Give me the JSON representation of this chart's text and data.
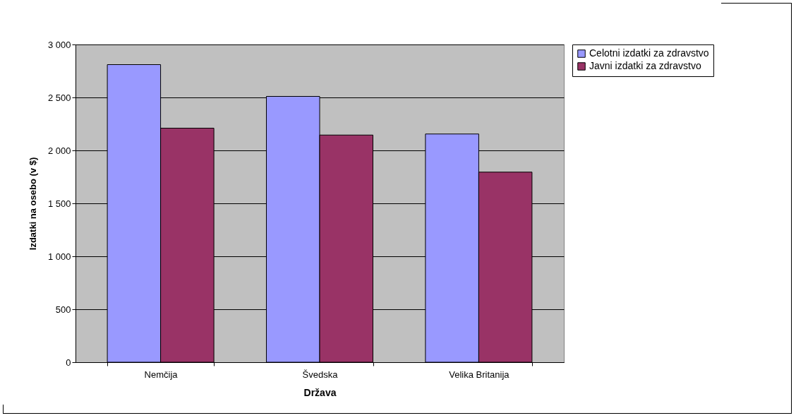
{
  "chart_data": {
    "type": "bar",
    "xlabel": "Država",
    "ylabel": "Izdatki na osebo (v $)",
    "categories": [
      "Nemčija",
      "Švedska",
      "Velika Britanija"
    ],
    "series": [
      {
        "name": "Celotni izdatki za zdravstvo",
        "color": "#9999ff",
        "values": [
          2810,
          2510,
          2155
        ]
      },
      {
        "name": "Javni izdatki za zdravstvo",
        "color": "#993366",
        "values": [
          2210,
          2145,
          1795
        ]
      }
    ],
    "ylim": [
      0,
      3000
    ],
    "yticks": [
      0,
      {
        "value": 500,
        "label": "500"
      },
      {
        "value": 1000,
        "label": "1 000"
      },
      {
        "value": 1500,
        "label": "1 500"
      },
      {
        "value": 2000,
        "label": "2 000"
      },
      {
        "value": 2500,
        "label": "2 500"
      },
      {
        "value": 3000,
        "label": "3 000"
      }
    ],
    "grid": "y",
    "legend": "right"
  }
}
